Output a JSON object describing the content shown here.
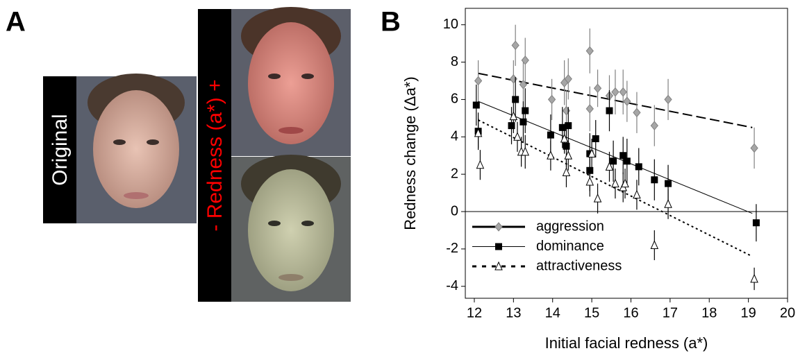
{
  "panel_a": {
    "label": "A",
    "original_label": "Original",
    "redness_label": "- Redness (a*) +"
  },
  "chart_data": {
    "type": "scatter",
    "panel_label": "B",
    "x_label": "Initial facial redness (a*)",
    "y_label": "Redness change (Δa*)",
    "xlim": [
      11.77,
      20
    ],
    "ylim": [
      -4.64,
      10.88
    ],
    "xticks": [
      12,
      13,
      14,
      15,
      16,
      17,
      18,
      19,
      20
    ],
    "yticks": [
      -4,
      -2,
      0,
      2,
      4,
      6,
      8,
      10
    ],
    "legend": "lower left",
    "series": [
      {
        "name": "aggression",
        "color": "#a6a6a6",
        "marker": "diamond",
        "line": "dashed",
        "x": [
          12.1,
          13.05,
          13.0,
          13.3,
          13.25,
          13.98,
          14.3,
          14.4,
          14.35,
          14.95,
          14.95,
          15.15,
          15.45,
          15.6,
          15.8,
          15.9,
          16.15,
          16.6,
          16.95,
          19.15
        ],
        "values": [
          7.0,
          8.9,
          7.1,
          8.1,
          6.8,
          6.0,
          6.9,
          7.1,
          5.4,
          8.6,
          5.5,
          6.6,
          6.2,
          6.4,
          6.4,
          5.9,
          5.3,
          4.6,
          6.0,
          3.4
        ],
        "errors": [
          1.1,
          1.1,
          1.0,
          1.2,
          1.2,
          1.1,
          1.2,
          1.1,
          1.1,
          1.2,
          1.2,
          1.0,
          1.1,
          1.2,
          1.2,
          1.1,
          1.1,
          1.1,
          1.1,
          1.1
        ],
        "trend_x": [
          12.1,
          19.1
        ],
        "trend_y": [
          7.4,
          4.5
        ]
      },
      {
        "name": "dominance",
        "color": "#000000",
        "marker": "square",
        "line": "solid",
        "x": [
          12.05,
          12.1,
          12.95,
          13.05,
          13.25,
          13.3,
          13.95,
          14.25,
          14.35,
          14.4,
          14.95,
          14.95,
          15.1,
          15.45,
          15.55,
          15.8,
          15.9,
          16.2,
          16.6,
          16.95,
          19.2
        ],
        "values": [
          5.7,
          4.3,
          4.6,
          6.0,
          4.8,
          5.4,
          4.1,
          4.5,
          3.5,
          4.6,
          3.1,
          2.2,
          3.9,
          5.4,
          2.7,
          3.0,
          2.7,
          2.4,
          1.7,
          1.5,
          -0.6
        ],
        "errors": [
          1.1,
          1.0,
          1.0,
          1.2,
          1.1,
          1.2,
          1.1,
          1.1,
          1.1,
          1.0,
          1.1,
          1.1,
          1.0,
          1.1,
          1.1,
          1.0,
          1.2,
          1.0,
          1.1,
          1.0,
          1.0
        ],
        "trend_x": [
          12.1,
          19.1
        ],
        "trend_y": [
          5.9,
          -0.1
        ]
      },
      {
        "name": "attractiveness",
        "color": "#ffffff",
        "marker": "triangle",
        "line": "dotted",
        "x": [
          12.1,
          12.15,
          13.0,
          13.1,
          13.2,
          13.3,
          13.95,
          14.3,
          14.35,
          14.4,
          14.95,
          15.0,
          15.15,
          15.45,
          15.6,
          15.8,
          15.85,
          16.15,
          16.6,
          16.95,
          19.15
        ],
        "values": [
          4.2,
          2.5,
          5.1,
          4.0,
          3.2,
          3.2,
          3.0,
          3.9,
          2.1,
          3.0,
          1.6,
          3.1,
          0.7,
          2.4,
          1.5,
          1.3,
          1.5,
          0.9,
          -1.8,
          0.4,
          -3.6
        ],
        "errors": [
          0.8,
          0.8,
          0.9,
          0.8,
          0.8,
          0.9,
          0.8,
          0.8,
          0.8,
          0.8,
          0.8,
          0.8,
          0.8,
          0.8,
          0.8,
          0.8,
          0.8,
          0.8,
          0.8,
          0.8,
          0.6
        ],
        "trend_x": [
          12.1,
          19.1
        ],
        "trend_y": [
          4.9,
          -2.4
        ]
      }
    ]
  }
}
